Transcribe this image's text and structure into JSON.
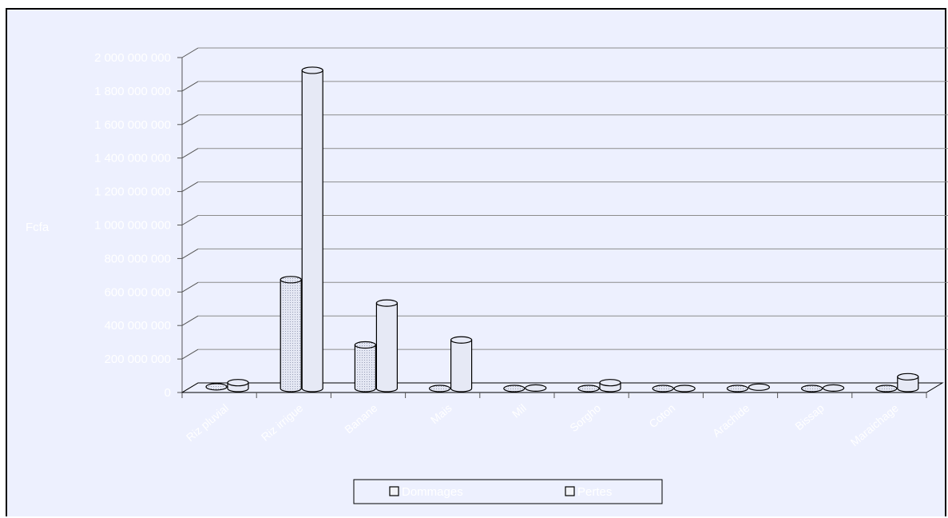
{
  "chart_data": {
    "type": "bar",
    "title": "",
    "ylabel": "Fcfa",
    "xlabel": "",
    "ylim": [
      0,
      2000000000
    ],
    "yticks": [
      "0",
      "200 000 000",
      "400 000 000",
      "600 000 000",
      "800 000 000",
      "1 000 000 000",
      "1 200 000 000",
      "1 400 000 000",
      "1 600 000 000",
      "1 800 000 000",
      "2 000 000 000"
    ],
    "categories": [
      "Riz pluvial",
      "Riz irrigue",
      "Banane",
      "Mais",
      "Mil",
      "Sorgho",
      "Coton",
      "Arachide",
      "Bissap",
      "Maraichage"
    ],
    "series": [
      {
        "name": "Dommages",
        "values": [
          10000000,
          650000000,
          260000000,
          0,
          0,
          0,
          0,
          0,
          0,
          0
        ]
      },
      {
        "name": "Pertes",
        "values": [
          35000000,
          1900000000,
          510000000,
          290000000,
          3000000,
          35000000,
          0,
          8000000,
          3000000,
          70000000
        ]
      }
    ],
    "legend_position": "bottom",
    "grid": true,
    "colors": {
      "background": "#edf0fe",
      "bar_fill": "#e6e9f5",
      "bar_stroke": "#000000",
      "grid": "#8c8c8c",
      "text": "#ffffff"
    }
  }
}
